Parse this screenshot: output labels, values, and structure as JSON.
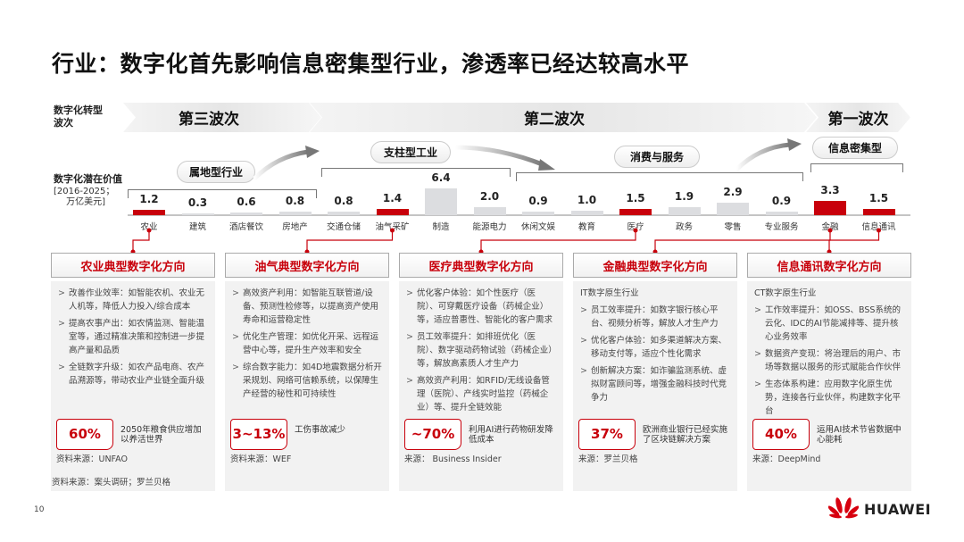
{
  "title": "行业：数字化首先影响信息密集型行业，渗透率已经达较高水平",
  "row_labels": {
    "wave": "数字化转型\n波次",
    "value": "数字化潜在价值",
    "unit": "[2016-2025；\n万亿美元]"
  },
  "waves": [
    "第三波次",
    "第二波次",
    "第一波次"
  ],
  "groups": [
    "属地型行业",
    "支柱型工业",
    "消费与服务",
    "信息密集型"
  ],
  "chart_data": {
    "type": "bar",
    "ylabel": "数字化潜在价值 [2016-2025；万亿美元]",
    "categories": [
      "农业",
      "建筑",
      "酒店餐饮",
      "房地产",
      "交通仓储",
      "油气采矿",
      "制造",
      "能源电力",
      "休闲文娱",
      "教育",
      "医疗",
      "政务",
      "零售",
      "专业服务",
      "金融",
      "信息通讯"
    ],
    "values": [
      1.2,
      0.3,
      0.6,
      0.8,
      0.8,
      1.4,
      6.4,
      2.0,
      0.9,
      1.0,
      1.5,
      1.9,
      2.9,
      0.9,
      3.3,
      1.5
    ],
    "value_labels": [
      "1.2",
      "0.3",
      "0.6",
      "0.8",
      "0.8",
      "1.4",
      "6.4",
      "2.0",
      "0.9",
      "1.0",
      "1.5",
      "1.9",
      "2.9",
      "0.9",
      "3.3",
      "1.5"
    ],
    "highlighted": [
      "农业",
      "油气采矿",
      "医疗",
      "金融",
      "信息通讯"
    ],
    "colors": {
      "highlight": "#c8000b",
      "default": "#dcdde0"
    }
  },
  "cards": [
    {
      "title": "农业典型数字化方向",
      "intro": "",
      "items": [
        "改善作业效率：如智能农机、农业无人机等，降低人力投入/综合成本",
        "提高农事产出：如农情监测、智能温室等，通过精准决策和控制进一步提高产量和品质",
        "全链数字升级：如农产品电商、农产品溯源等，带动农业产业链全面升级"
      ],
      "stat": "60%",
      "stat_desc": "2050年粮食供应增加以养活世界",
      "source": "资料来源：UNFAO"
    },
    {
      "title": "油气典型数字化方向",
      "intro": "",
      "items": [
        "高效资产利用：如智能互联管道/设备、预测性检修等，以提高资产使用寿命和运营稳定性",
        "优化生产管理：如优化开采、远程运营中心等，提升生产效率和安全",
        "综合数字能力：如4D地震数据分析开采规划、网络可信赖系统，以保障生产经营的秘性和可持续性"
      ],
      "stat": "3~13%",
      "stat_desc": "工伤事故减少",
      "source": "资料来源：WEF"
    },
    {
      "title": "医疗典型数字化方向",
      "intro": "",
      "items": [
        "优化客户体验：如个性医疗（医院）、可穿戴医疗设备（药械企业）等，适应普惠性、智能化的客户需求",
        "员工效率提升：如排班优化（医院）、数字驱动药物试验（药械企业）等，解放高素质人才生产力",
        "高效资产利用：如RFID/无线设备管理（医院）、产线实时监控（药械企业）等、提升全链效能"
      ],
      "stat": "~70%",
      "stat_desc": "利用AI进行药物研发降低成本",
      "source": "来源： Business Insider"
    },
    {
      "title": "金融典型数字化方向",
      "intro": "IT数字原生行业",
      "items": [
        "员工效率提升：如数字银行核心平台、视频分析等，解放人才生产力",
        "优化客户体验：如多渠道解决方案、移动支付等，适应个性化需求",
        "创新解决方案：如诈骗监测系统、虚拟财富顾问等，增强金融科技时代竞争力"
      ],
      "stat": "37%",
      "stat_desc": "欧洲商业银行已经实施了区块链解决方案",
      "source": "来源：罗兰贝格"
    },
    {
      "title": "信息通讯数字化方向",
      "intro": "CT数字原生行业",
      "items": [
        "工作效率提升：如OSS、BSS系统的云化、IDC的AI节能减排等、提升核心业务效率",
        "数据资产变现：将治理后的用户、市场等数据以服务的形式赋能合作伙伴",
        "生态体系构建：应用数字化原生优势，连接各行业伙伴，构建数字化平台"
      ],
      "stat": "40%",
      "stat_desc": "运用AI技术节省数据中心能耗",
      "source": "来源：DeepMind"
    }
  ],
  "footnote": "资料来源：案头调研；罗兰贝格",
  "page_number": "10",
  "logo": "HUAWEI"
}
